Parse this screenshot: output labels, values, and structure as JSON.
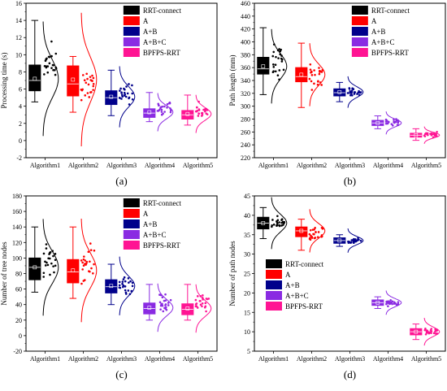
{
  "legend": [
    "RRT-connect",
    "A",
    "A+B",
    "A+B+C",
    "BPFPS-RRT"
  ],
  "colors": [
    "#000000",
    "#ff0000",
    "#00008b",
    "#8a2be2",
    "#ff1493"
  ],
  "chart_data": [
    {
      "type": "box",
      "panel": "(a)",
      "ylabel": "Processing time (s)",
      "ylim": [
        -2,
        16
      ],
      "yticks": [
        -2,
        0,
        2,
        4,
        6,
        8,
        10,
        12,
        14,
        16
      ],
      "categories": [
        "Algorithm1",
        "Algorithm2",
        "Algorithm3",
        "Algorithm4",
        "Algorithm5"
      ],
      "legend_position": "top-right",
      "series": [
        {
          "q1": 5.8,
          "median": 7.0,
          "q3": 8.8,
          "min": 4.5,
          "max": 14.0,
          "mean": 7.2
        },
        {
          "q1": 5.2,
          "median": 6.6,
          "q3": 8.7,
          "min": 3.3,
          "max": 9.8,
          "mean": 7.1
        },
        {
          "q1": 4.2,
          "median": 5.0,
          "q3": 5.8,
          "min": 2.9,
          "max": 8.2,
          "mean": 5.1
        },
        {
          "q1": 2.7,
          "median": 3.2,
          "q3": 3.7,
          "min": 2.2,
          "max": 5.6,
          "mean": 3.3
        },
        {
          "q1": 2.5,
          "median": 3.0,
          "q3": 3.5,
          "min": 1.8,
          "max": 5.3,
          "mean": 3.1
        }
      ]
    },
    {
      "type": "box",
      "panel": "(b)",
      "ylabel": "Path length (mm)",
      "ylim": [
        220,
        460
      ],
      "yticks": [
        220,
        240,
        260,
        280,
        300,
        320,
        340,
        360,
        380,
        400,
        420,
        440,
        460
      ],
      "categories": [
        "Algorithm1",
        "Algorithm2",
        "Algorithm3",
        "Algorithm4",
        "Algorithm5"
      ],
      "legend_position": "top-right",
      "series": [
        {
          "q1": 350,
          "median": 358,
          "q3": 376,
          "min": 318,
          "max": 422,
          "mean": 362
        },
        {
          "q1": 338,
          "median": 346,
          "q3": 360,
          "min": 298,
          "max": 398,
          "mean": 349
        },
        {
          "q1": 316,
          "median": 321,
          "q3": 327,
          "min": 307,
          "max": 337,
          "mean": 322
        },
        {
          "q1": 270,
          "median": 274,
          "q3": 278,
          "min": 265,
          "max": 285,
          "mean": 274
        },
        {
          "q1": 252,
          "median": 255,
          "q3": 258,
          "min": 247,
          "max": 265,
          "mean": 255
        }
      ]
    },
    {
      "type": "box",
      "panel": "(c)",
      "ylabel": "Number of tree nodes",
      "ylim": [
        -20,
        180
      ],
      "yticks": [
        -20,
        0,
        20,
        40,
        60,
        80,
        100,
        120,
        140,
        160,
        180
      ],
      "categories": [
        "Algorithm1",
        "Algorithm2",
        "Algorithm3",
        "Algorithm4",
        "Algorithm5"
      ],
      "legend_position": "top-right",
      "series": [
        {
          "q1": 72,
          "median": 88,
          "q3": 100,
          "min": 56,
          "max": 140,
          "mean": 88
        },
        {
          "q1": 68,
          "median": 82,
          "q3": 98,
          "min": 48,
          "max": 140,
          "mean": 84
        },
        {
          "q1": 55,
          "median": 63,
          "q3": 72,
          "min": 40,
          "max": 92,
          "mean": 64
        },
        {
          "q1": 28,
          "median": 35,
          "q3": 42,
          "min": 20,
          "max": 66,
          "mean": 36
        },
        {
          "q1": 27,
          "median": 34,
          "q3": 41,
          "min": 20,
          "max": 66,
          "mean": 35
        }
      ]
    },
    {
      "type": "box",
      "panel": "(d)",
      "ylabel": "Number of path nodes",
      "ylim": [
        5,
        45
      ],
      "yticks": [
        5,
        10,
        15,
        20,
        25,
        30,
        35,
        40,
        45
      ],
      "categories": [
        "Algorithm1",
        "Algorithm2",
        "Algorithm3",
        "Algorithm4",
        "Algorithm5"
      ],
      "legend_position": "center-left",
      "series": [
        {
          "q1": 36.5,
          "median": 38,
          "q3": 39.5,
          "min": 34,
          "max": 42,
          "mean": 38
        },
        {
          "q1": 34.5,
          "median": 36,
          "q3": 37,
          "min": 31,
          "max": 39,
          "mean": 36
        },
        {
          "q1": 32.8,
          "median": 33.5,
          "q3": 34.2,
          "min": 32,
          "max": 35,
          "mean": 33.5
        },
        {
          "q1": 16.8,
          "median": 17.5,
          "q3": 18.2,
          "min": 16,
          "max": 19,
          "mean": 17.5
        },
        {
          "q1": 9.2,
          "median": 10,
          "q3": 10.8,
          "min": 8,
          "max": 12,
          "mean": 10
        }
      ]
    }
  ]
}
